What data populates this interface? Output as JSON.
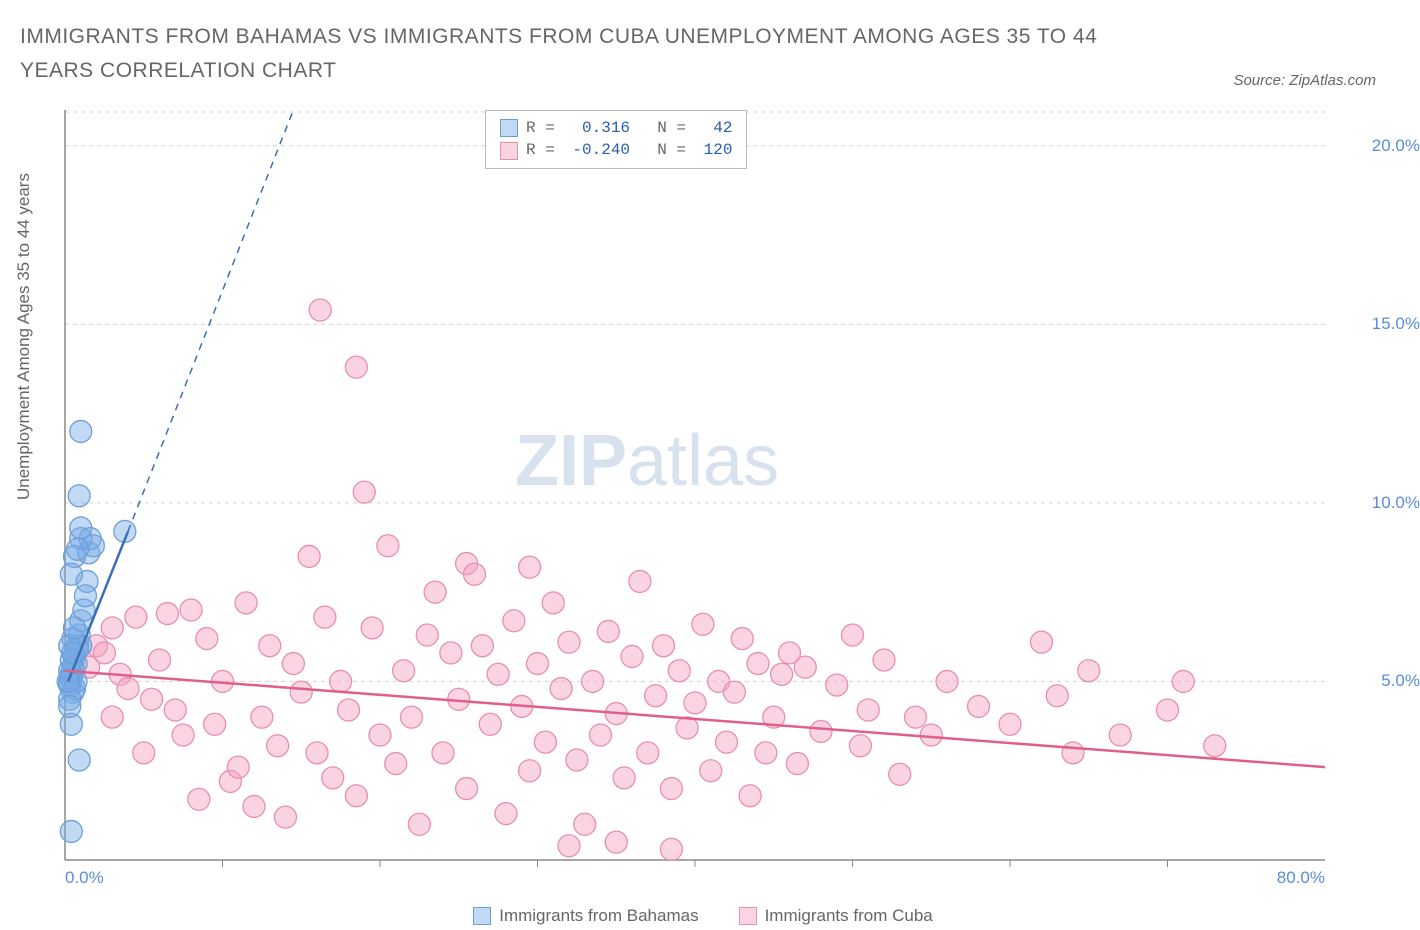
{
  "title": "IMMIGRANTS FROM BAHAMAS VS IMMIGRANTS FROM CUBA UNEMPLOYMENT AMONG AGES 35 TO 44 YEARS CORRELATION CHART",
  "source": "Source: ZipAtlas.com",
  "ylabel": "Unemployment Among Ages 35 to 44 years",
  "watermark_left": "ZIP",
  "watermark_right": "atlas",
  "colors": {
    "series_a_fill": "rgba(120,170,230,0.45)",
    "series_a_stroke": "#6c9fd8",
    "series_b_fill": "rgba(245,160,190,0.45)",
    "series_b_stroke": "#e88fad",
    "trend_a": "#3a6fb7",
    "trend_b": "#e05f8a",
    "axis": "#888888",
    "grid": "#d0d0d0",
    "tick_text": "#5b8dd6",
    "title_text": "#666666",
    "watermark": "#d8e2ef",
    "stat_value": "#2a5db0"
  },
  "plot": {
    "x_min": 0,
    "x_max": 80,
    "y_min": 0,
    "y_max": 21,
    "y_ticks": [
      5,
      10,
      15,
      20
    ],
    "y_tick_labels": [
      "5.0%",
      "10.0%",
      "15.0%",
      "20.0%"
    ],
    "x_tick_minor": [
      10,
      20,
      30,
      40,
      50,
      60,
      70
    ],
    "x_tick_labels": [
      {
        "v": 0,
        "t": "0.0%"
      },
      {
        "v": 80,
        "t": "80.0%"
      }
    ],
    "marker_radius": 11
  },
  "stats": {
    "a": {
      "R": "0.316",
      "N": "42"
    },
    "b": {
      "R": "-0.240",
      "N": "120"
    }
  },
  "legend": {
    "a": "Immigrants from Bahamas",
    "b": "Immigrants from Cuba"
  },
  "trend_lines": {
    "a_solid": {
      "x1": 0.2,
      "y1": 5.0,
      "x2": 4.0,
      "y2": 9.2
    },
    "a_dashed": {
      "x1": 4.0,
      "y1": 9.2,
      "x2": 14.5,
      "y2": 21.0
    },
    "b": {
      "x1": 0.0,
      "y1": 5.3,
      "x2": 80.0,
      "y2": 2.6
    }
  },
  "series_a": [
    [
      0.3,
      5.0
    ],
    [
      0.4,
      5.2
    ],
    [
      0.5,
      5.4
    ],
    [
      0.3,
      4.9
    ],
    [
      0.6,
      5.7
    ],
    [
      0.8,
      6.0
    ],
    [
      0.5,
      5.3
    ],
    [
      0.7,
      5.5
    ],
    [
      0.9,
      6.3
    ],
    [
      0.4,
      5.1
    ],
    [
      0.6,
      4.8
    ],
    [
      0.8,
      5.9
    ],
    [
      1.0,
      6.7
    ],
    [
      0.5,
      4.7
    ],
    [
      0.7,
      5.0
    ],
    [
      0.3,
      4.5
    ],
    [
      0.4,
      3.8
    ],
    [
      0.9,
      2.8
    ],
    [
      0.4,
      0.8
    ],
    [
      1.2,
      7.0
    ],
    [
      1.4,
      7.8
    ],
    [
      1.0,
      6.0
    ],
    [
      1.3,
      7.4
    ],
    [
      1.5,
      8.6
    ],
    [
      1.6,
      9.0
    ],
    [
      1.8,
      8.8
    ],
    [
      1.0,
      9.0
    ],
    [
      1.0,
      9.3
    ],
    [
      0.9,
      10.2
    ],
    [
      1.0,
      12.0
    ],
    [
      0.6,
      8.5
    ],
    [
      0.8,
      8.7
    ],
    [
      0.4,
      8.0
    ],
    [
      3.8,
      9.2
    ],
    [
      0.5,
      6.2
    ],
    [
      0.3,
      6.0
    ],
    [
      0.6,
      6.5
    ],
    [
      0.4,
      5.6
    ],
    [
      0.3,
      5.3
    ],
    [
      0.5,
      5.8
    ],
    [
      0.2,
      5.0
    ],
    [
      0.3,
      4.3
    ]
  ],
  "series_b": [
    [
      1.5,
      5.4
    ],
    [
      2.0,
      6.0
    ],
    [
      2.5,
      5.8
    ],
    [
      3.0,
      6.5
    ],
    [
      3.5,
      5.2
    ],
    [
      3.0,
      4.0
    ],
    [
      4.0,
      4.8
    ],
    [
      4.5,
      6.8
    ],
    [
      5.0,
      3.0
    ],
    [
      5.5,
      4.5
    ],
    [
      6.0,
      5.6
    ],
    [
      6.5,
      6.9
    ],
    [
      7.0,
      4.2
    ],
    [
      7.5,
      3.5
    ],
    [
      8.0,
      7.0
    ],
    [
      8.5,
      1.7
    ],
    [
      9.0,
      6.2
    ],
    [
      9.5,
      3.8
    ],
    [
      10.0,
      5.0
    ],
    [
      10.5,
      2.2
    ],
    [
      11.0,
      2.6
    ],
    [
      11.5,
      7.2
    ],
    [
      12.0,
      1.5
    ],
    [
      12.5,
      4.0
    ],
    [
      13.0,
      6.0
    ],
    [
      13.5,
      3.2
    ],
    [
      14.0,
      1.2
    ],
    [
      14.5,
      5.5
    ],
    [
      15.0,
      4.7
    ],
    [
      15.5,
      8.5
    ],
    [
      16.0,
      3.0
    ],
    [
      16.2,
      15.4
    ],
    [
      16.5,
      6.8
    ],
    [
      17.0,
      2.3
    ],
    [
      17.5,
      5.0
    ],
    [
      18.0,
      4.2
    ],
    [
      18.5,
      1.8
    ],
    [
      18.5,
      13.8
    ],
    [
      19.0,
      10.3
    ],
    [
      19.5,
      6.5
    ],
    [
      20.0,
      3.5
    ],
    [
      20.5,
      8.8
    ],
    [
      21.0,
      2.7
    ],
    [
      21.5,
      5.3
    ],
    [
      22.0,
      4.0
    ],
    [
      22.5,
      1.0
    ],
    [
      23.0,
      6.3
    ],
    [
      23.5,
      7.5
    ],
    [
      24.0,
      3.0
    ],
    [
      24.5,
      5.8
    ],
    [
      25.0,
      4.5
    ],
    [
      25.5,
      2.0
    ],
    [
      25.5,
      8.3
    ],
    [
      26.0,
      8.0
    ],
    [
      26.5,
      6.0
    ],
    [
      27.0,
      3.8
    ],
    [
      27.5,
      5.2
    ],
    [
      28.0,
      1.3
    ],
    [
      28.5,
      6.7
    ],
    [
      29.0,
      4.3
    ],
    [
      29.5,
      2.5
    ],
    [
      29.5,
      8.2
    ],
    [
      30.0,
      5.5
    ],
    [
      30.5,
      3.3
    ],
    [
      31.0,
      7.2
    ],
    [
      31.5,
      4.8
    ],
    [
      32.0,
      6.1
    ],
    [
      32.0,
      0.4
    ],
    [
      32.5,
      2.8
    ],
    [
      33.0,
      1.0
    ],
    [
      33.5,
      5.0
    ],
    [
      34.0,
      3.5
    ],
    [
      34.5,
      6.4
    ],
    [
      35.0,
      4.1
    ],
    [
      35.0,
      0.5
    ],
    [
      35.5,
      2.3
    ],
    [
      36.0,
      5.7
    ],
    [
      36.5,
      7.8
    ],
    [
      37.0,
      3.0
    ],
    [
      37.5,
      4.6
    ],
    [
      38.0,
      6.0
    ],
    [
      38.5,
      2.0
    ],
    [
      38.5,
      0.3
    ],
    [
      39.0,
      5.3
    ],
    [
      39.5,
      3.7
    ],
    [
      40.0,
      4.4
    ],
    [
      40.5,
      6.6
    ],
    [
      41.0,
      2.5
    ],
    [
      41.5,
      5.0
    ],
    [
      42.0,
      3.3
    ],
    [
      42.5,
      4.7
    ],
    [
      43.0,
      6.2
    ],
    [
      43.5,
      1.8
    ],
    [
      44.0,
      5.5
    ],
    [
      44.5,
      3.0
    ],
    [
      45.0,
      4.0
    ],
    [
      45.5,
      5.2
    ],
    [
      46.0,
      5.8
    ],
    [
      46.5,
      2.7
    ],
    [
      47.0,
      5.4
    ],
    [
      48.0,
      3.6
    ],
    [
      49.0,
      4.9
    ],
    [
      50.0,
      6.3
    ],
    [
      50.5,
      3.2
    ],
    [
      51.0,
      4.2
    ],
    [
      52.0,
      5.6
    ],
    [
      53.0,
      2.4
    ],
    [
      54.0,
      4.0
    ],
    [
      55.0,
      3.5
    ],
    [
      56.0,
      5.0
    ],
    [
      58.0,
      4.3
    ],
    [
      60.0,
      3.8
    ],
    [
      62.0,
      6.1
    ],
    [
      63.0,
      4.6
    ],
    [
      64.0,
      3.0
    ],
    [
      65.0,
      5.3
    ],
    [
      67.0,
      3.5
    ],
    [
      70.0,
      4.2
    ],
    [
      71.0,
      5.0
    ],
    [
      73.0,
      3.2
    ]
  ]
}
